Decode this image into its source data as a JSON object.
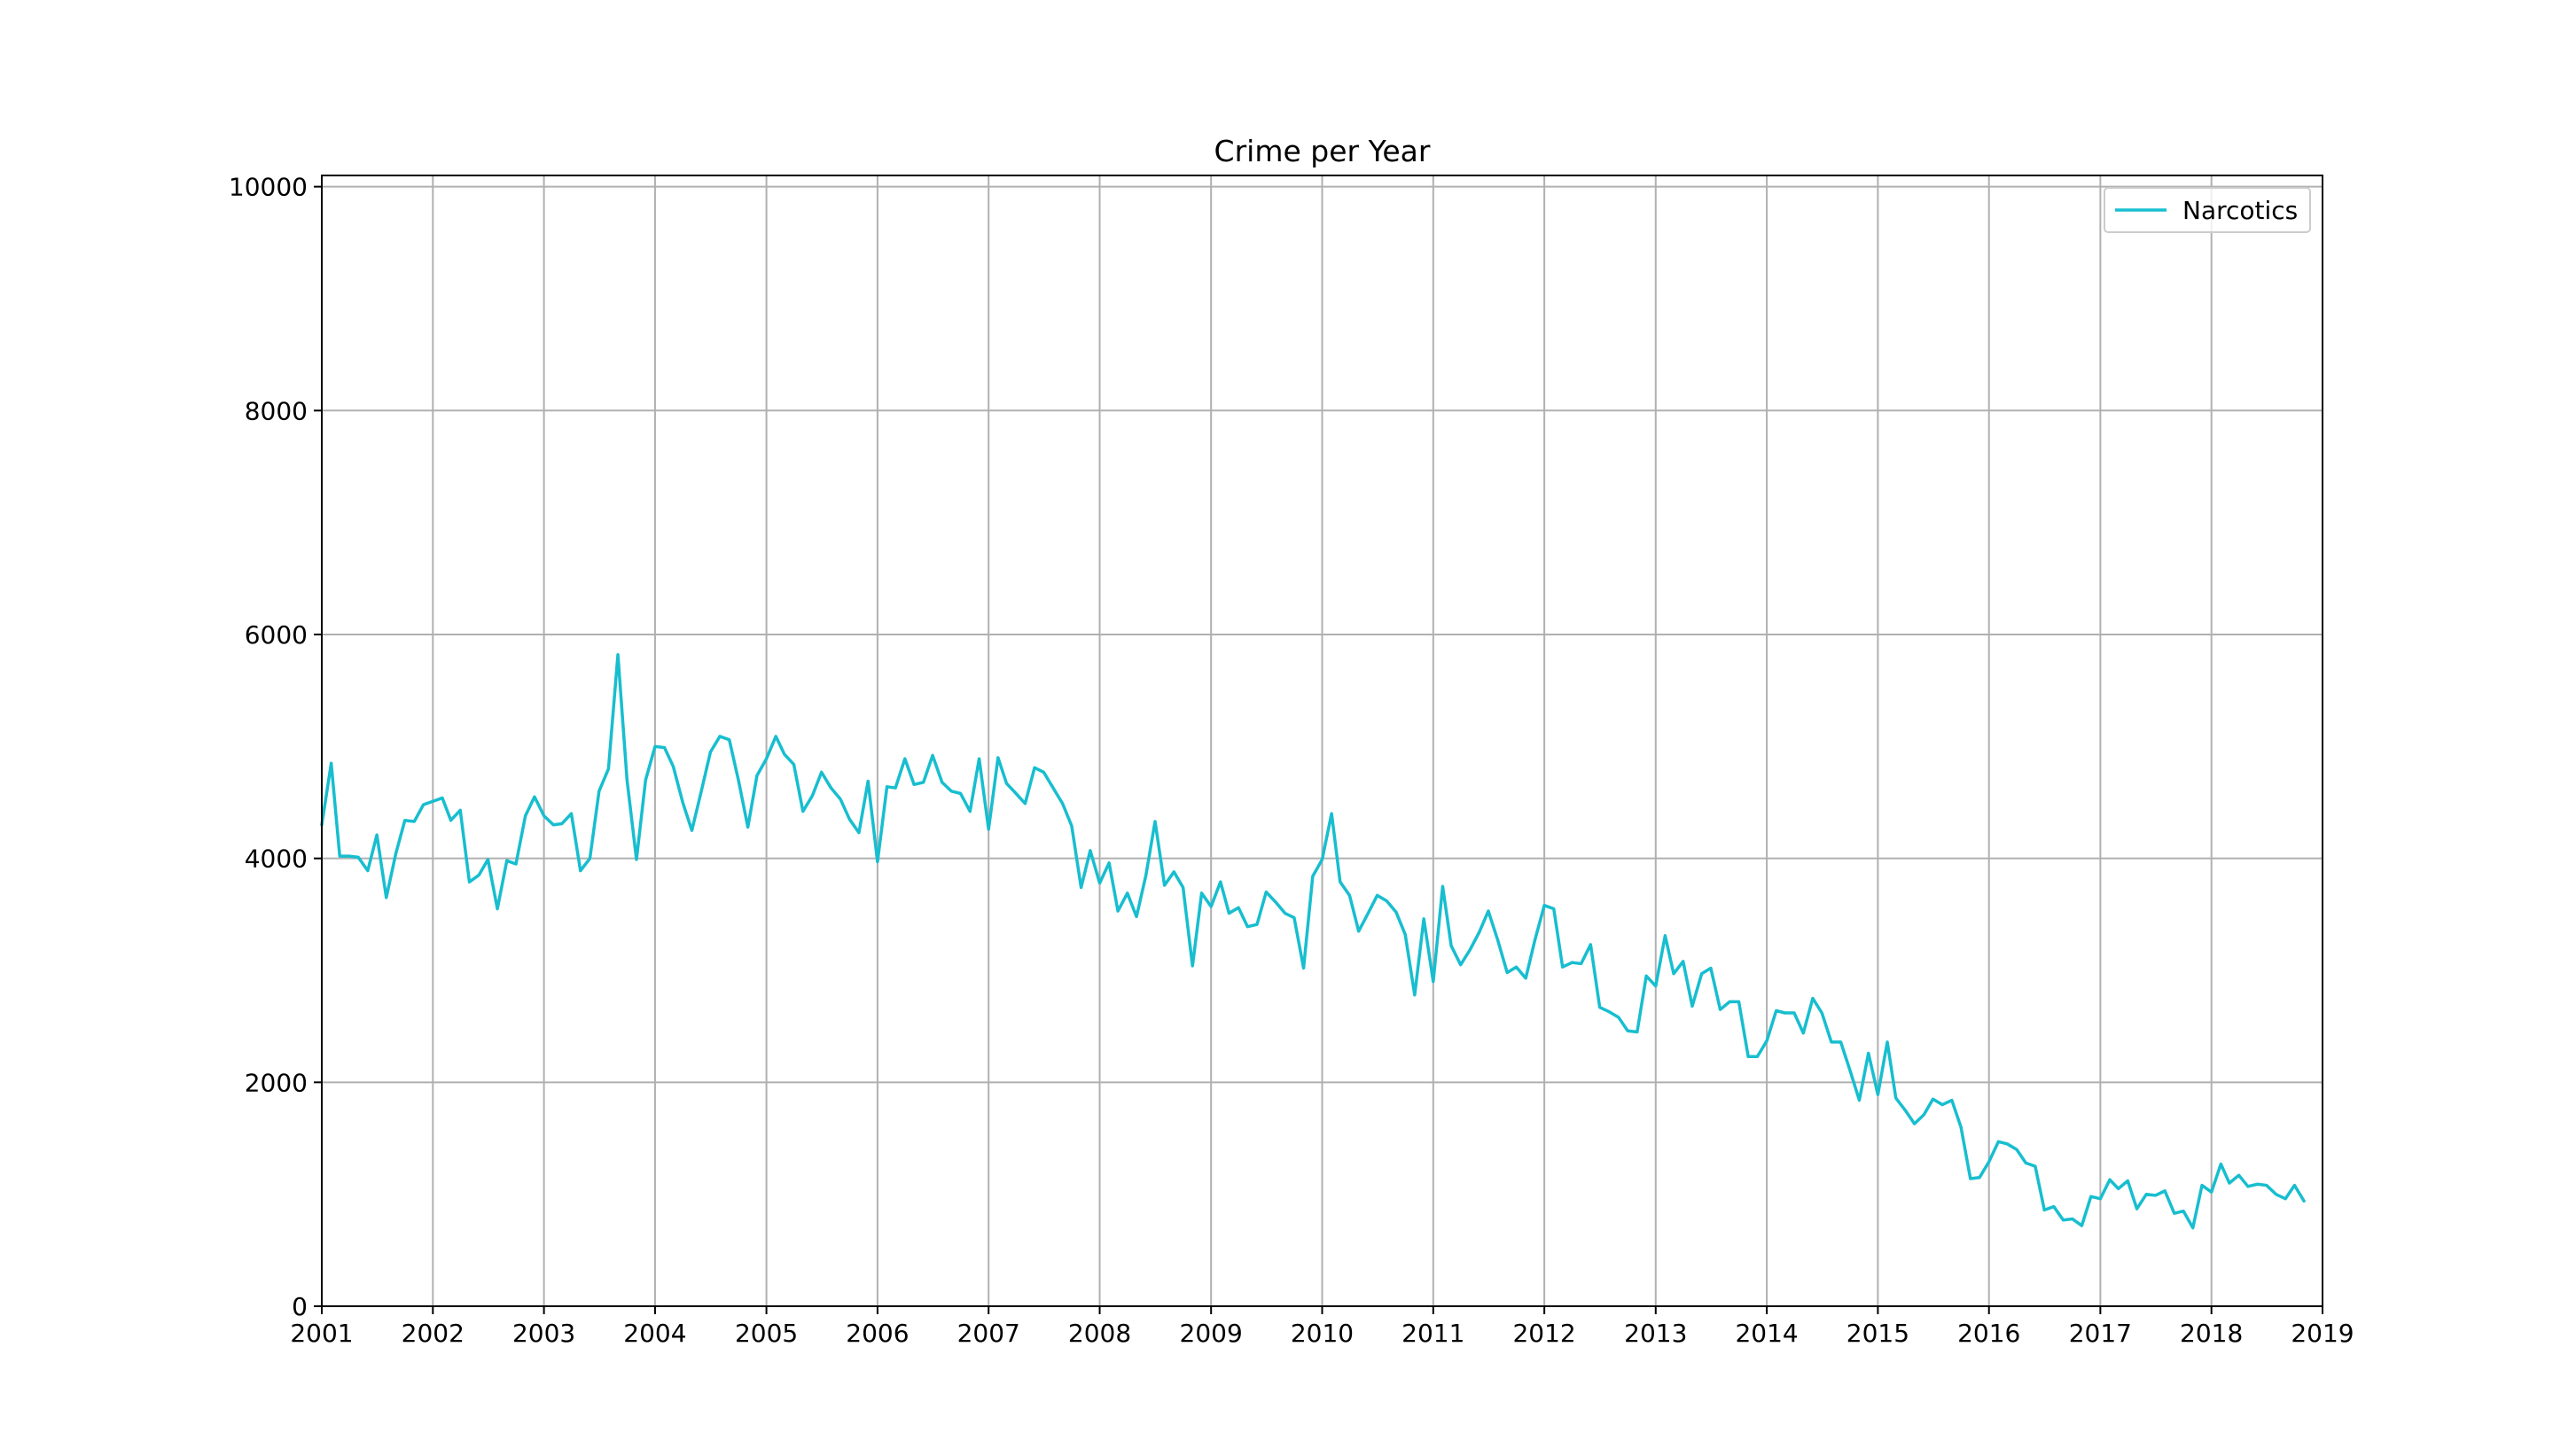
{
  "chart_data": {
    "type": "line",
    "title": "Crime per Year",
    "xlabel": "",
    "ylabel": "",
    "xlim": [
      "2001-01-01",
      "2019-01-01"
    ],
    "ylim": [
      0,
      10000
    ],
    "x_ticks": [
      "2001",
      "2002",
      "2003",
      "2004",
      "2005",
      "2006",
      "2007",
      "2008",
      "2009",
      "2010",
      "2011",
      "2012",
      "2013",
      "2014",
      "2015",
      "2016",
      "2017",
      "2018",
      "2019"
    ],
    "y_ticks": [
      "0",
      "2000",
      "4000",
      "6000",
      "8000",
      "10000"
    ],
    "grid": true,
    "legend_position": "top-right",
    "series": [
      {
        "name": "Narcotics",
        "color": "#17becf",
        "x_start": "2001-01",
        "x_step": "month",
        "values": [
          4300,
          4850,
          4020,
          4020,
          4010,
          3890,
          4210,
          3650,
          4040,
          4340,
          4330,
          4480,
          4510,
          4540,
          4340,
          4430,
          3790,
          3850,
          3990,
          3550,
          3980,
          3950,
          4380,
          4550,
          4380,
          4300,
          4310,
          4400,
          3890,
          4000,
          4600,
          4800,
          5820,
          4700,
          3990,
          4700,
          5000,
          4990,
          4820,
          4500,
          4250,
          4600,
          4950,
          5090,
          5060,
          4700,
          4280,
          4740,
          4890,
          5090,
          4930,
          4840,
          4420,
          4560,
          4770,
          4630,
          4530,
          4350,
          4230,
          4690,
          3970,
          4640,
          4630,
          4890,
          4660,
          4680,
          4920,
          4680,
          4600,
          4580,
          4420,
          4890,
          4260,
          4900,
          4670,
          4580,
          4490,
          4810,
          4770,
          4630,
          4490,
          4290,
          3740,
          4070,
          3780,
          3960,
          3530,
          3690,
          3480,
          3850,
          4330,
          3760,
          3880,
          3740,
          3040,
          3690,
          3570,
          3790,
          3510,
          3560,
          3390,
          3410,
          3700,
          3610,
          3510,
          3470,
          3020,
          3840,
          3990,
          4400,
          3790,
          3670,
          3350,
          3510,
          3670,
          3620,
          3520,
          3320,
          2780,
          3460,
          2900,
          3750,
          3220,
          3050,
          3180,
          3340,
          3530,
          3270,
          2980,
          3030,
          2930,
          3270,
          3580,
          3550,
          3030,
          3070,
          3060,
          3230,
          2670,
          2630,
          2580,
          2460,
          2450,
          2950,
          2860,
          3310,
          2970,
          3080,
          2680,
          2970,
          3020,
          2650,
          2720,
          2720,
          2230,
          2230,
          2370,
          2640,
          2620,
          2620,
          2440,
          2750,
          2620,
          2360,
          2360,
          2110,
          1840,
          2260,
          1890,
          2360,
          1860,
          1750,
          1630,
          1710,
          1850,
          1800,
          1840,
          1600,
          1140,
          1150,
          1290,
          1470,
          1450,
          1400,
          1280,
          1250,
          860,
          890,
          770,
          780,
          720,
          980,
          960,
          1130,
          1050,
          1120,
          870,
          1000,
          990,
          1030,
          830,
          850,
          700,
          1080,
          1020,
          1270,
          1100,
          1170,
          1070,
          1090,
          1080,
          1000,
          960,
          1080,
          940
        ]
      }
    ]
  }
}
